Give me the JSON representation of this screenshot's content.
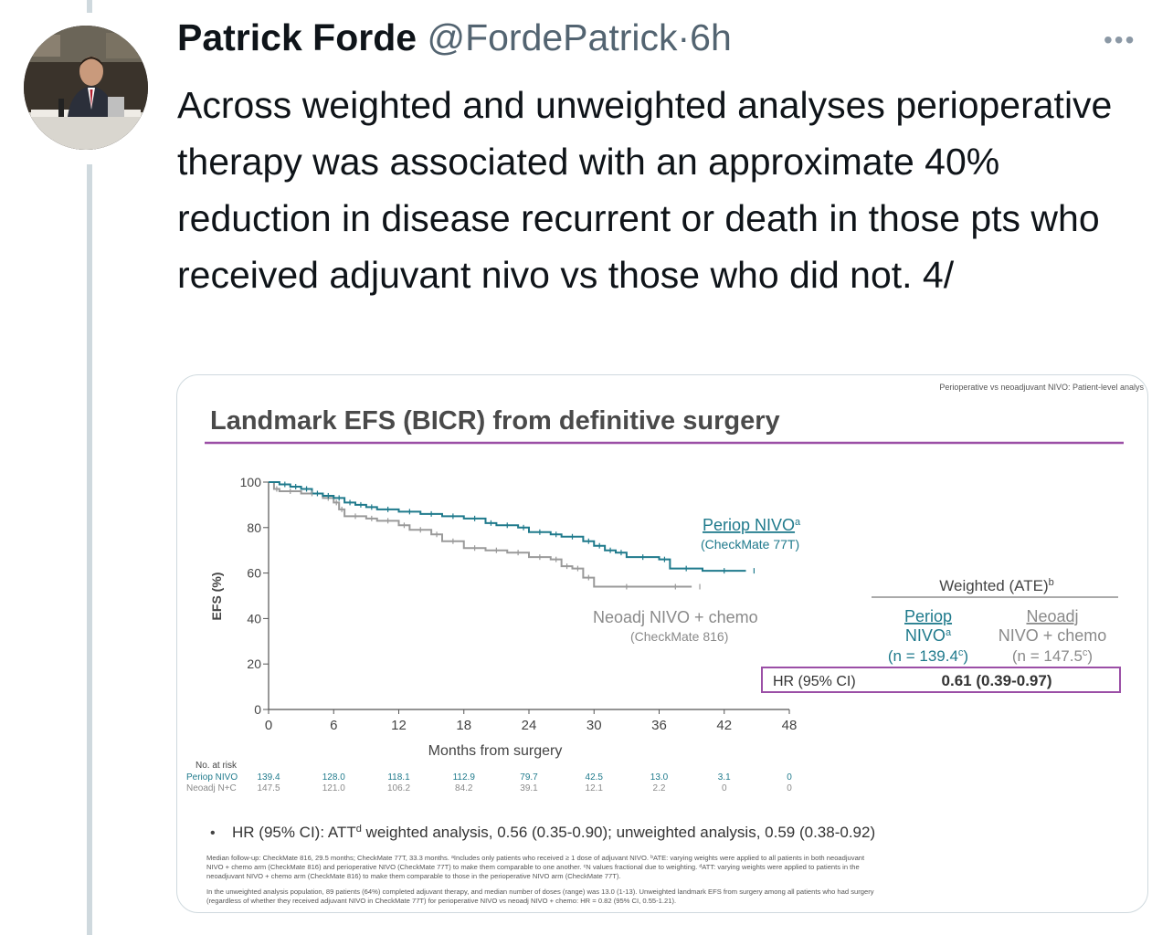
{
  "tweet": {
    "author_name": "Patrick Forde",
    "handle": "@FordePatrick",
    "separator": "·",
    "time": "6h",
    "more_icon": "ellipsis-icon",
    "text": "Across weighted and unweighted analyses perioperative therapy was associated with an approximate 40% reduction in disease recurrent or death in those pts who received adjuvant nivo vs those who did not. 4/"
  },
  "slide": {
    "header_note": "Perioperative vs neoadjuvant NIVO: Patient-level analys",
    "title": "Landmark EFS (BICR) from definitive surgery",
    "accent_color": "#9b4fa6",
    "perio_color": "#1f7a8c",
    "neo_color": "#9a9a9a",
    "perio_label_1": "Periop NIVO",
    "perio_label_sup": "a",
    "perio_label_2": "(CheckMate 77T)",
    "neo_label_1": "Neoadj NIVO + chemo",
    "neo_label_2": "(CheckMate 816)",
    "weighted": {
      "title": "Weighted (ATE)",
      "title_sup": "b",
      "col1_line1": "Periop",
      "col1_line2": "NIVO",
      "col1_sup": "a",
      "col1_n": "(n = 139.4",
      "col1_n_sup": "c",
      "col1_n_end": ")",
      "col2_line1": "Neoadj",
      "col2_line2": "NIVO + chemo",
      "col2_n": "(n = 147.5",
      "col2_n_sup": "c",
      "col2_n_end": ")",
      "hr_label": "HR (95% CI)",
      "hr_value": "0.61 (0.39-0.97)"
    },
    "risk": {
      "title": "No. at risk",
      "perio_label": "Periop NIVO",
      "neo_label": "Neoadj N+C",
      "perio_values": [
        "139.4",
        "128.0",
        "118.1",
        "112.9",
        "79.7",
        "42.5",
        "13.0",
        "3.1",
        "0"
      ],
      "neo_values": [
        "147.5",
        "121.0",
        "106.2",
        "84.2",
        "39.1",
        "12.1",
        "2.2",
        "0",
        "0"
      ]
    },
    "bullet": "HR (95% CI): ATT",
    "bullet_sup": "d",
    "bullet_rest": " weighted analysis, 0.56 (0.35-0.90); unweighted analysis, 0.59 (0.38-0.92)",
    "footnote_1": "Median follow-up: CheckMate 816, 29.5 months; CheckMate 77T, 33.3 months. ᵃIncludes only patients who received ≥ 1 dose of adjuvant NIVO. ᵇATE: varying weights were applied to all patients in both neoadjuvant",
    "footnote_2": "NIVO + chemo arm (CheckMate 816) and perioperative NIVO (CheckMate 77T) to make them comparable to one another. ᶜN values fractional due to weighting. ᵈATT: varying weights were applied to patients in the",
    "footnote_3": "neoadjuvant NIVO + chemo arm (CheckMate 816) to make them comparable to those in the perioperative NIVO arm (CheckMate 77T).",
    "footnote_4": "In the unweighted analysis population, 89 patients (64%) completed adjuvant therapy, and median number of doses (range) was 13.0 (1-13). Unweighted landmark EFS from surgery among all patients who had surgery",
    "footnote_5": "(regardless of whether they received adjuvant NIVO in CheckMate 77T) for perioperative NIVO vs neoadj NIVO + chemo: HR = 0.82 (95% CI, 0.55-1.21)."
  },
  "chart_data": {
    "type": "line",
    "xlabel": "Months from surgery",
    "ylabel": "EFS (%)",
    "xlim": [
      0,
      48
    ],
    "ylim": [
      0,
      100
    ],
    "x_ticks": [
      0,
      6,
      12,
      18,
      24,
      30,
      36,
      42,
      48
    ],
    "y_ticks": [
      0,
      20,
      40,
      60,
      80,
      100
    ],
    "legend_placement": "inline",
    "series": [
      {
        "name": "Periop NIVO",
        "color": "#1f7a8c",
        "points": [
          [
            0,
            100
          ],
          [
            1,
            99
          ],
          [
            2,
            98
          ],
          [
            3,
            97
          ],
          [
            4,
            95
          ],
          [
            5,
            94
          ],
          [
            6,
            93
          ],
          [
            7,
            91
          ],
          [
            8,
            90
          ],
          [
            9,
            89
          ],
          [
            10,
            88
          ],
          [
            12,
            87
          ],
          [
            14,
            86
          ],
          [
            16,
            85
          ],
          [
            18,
            84
          ],
          [
            20,
            82
          ],
          [
            21,
            81
          ],
          [
            23,
            80
          ],
          [
            24,
            78
          ],
          [
            26,
            77
          ],
          [
            27,
            76
          ],
          [
            29,
            74
          ],
          [
            30,
            72
          ],
          [
            31,
            70
          ],
          [
            32,
            69
          ],
          [
            33,
            67
          ],
          [
            36,
            66
          ],
          [
            37,
            62
          ],
          [
            40,
            61
          ],
          [
            44,
            61
          ]
        ]
      },
      {
        "name": "Neoadj NIVO + chemo",
        "color": "#9a9a9a",
        "points": [
          [
            0,
            100
          ],
          [
            0.5,
            97
          ],
          [
            1,
            96
          ],
          [
            3,
            95
          ],
          [
            5,
            93
          ],
          [
            6,
            91
          ],
          [
            6.5,
            88
          ],
          [
            7,
            85
          ],
          [
            9,
            84
          ],
          [
            10,
            83
          ],
          [
            12,
            81
          ],
          [
            13,
            79
          ],
          [
            15,
            77
          ],
          [
            16,
            74
          ],
          [
            18,
            71
          ],
          [
            20,
            70
          ],
          [
            22,
            69
          ],
          [
            24,
            67
          ],
          [
            26,
            66
          ],
          [
            27,
            63
          ],
          [
            28,
            62
          ],
          [
            29,
            58
          ],
          [
            30,
            54
          ],
          [
            36,
            54
          ],
          [
            39,
            54
          ]
        ]
      }
    ]
  }
}
